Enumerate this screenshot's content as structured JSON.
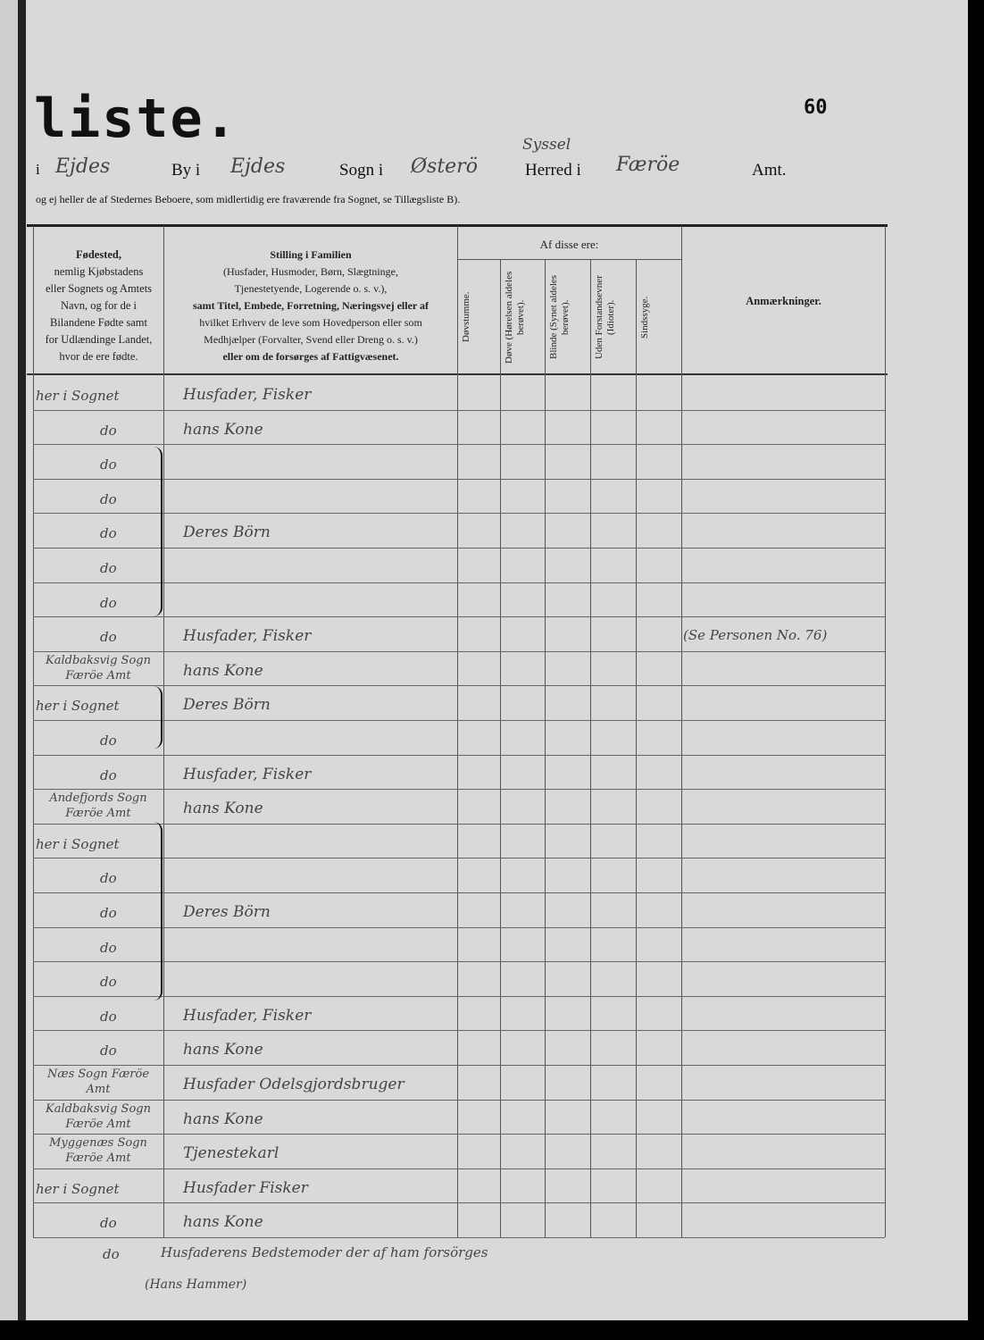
{
  "header": {
    "title": "liste.",
    "page_number": "60",
    "location_line": {
      "prefix_i": "i",
      "town_hand": "Ejdes",
      "by_label": "By i",
      "by_hand": "Ejdes",
      "sogn_label": "Sogn i",
      "sogn_hand": "Østerö",
      "herred_label": "Herred i",
      "herred_correction_hand": "Syssel",
      "amt_hand": "Færöe",
      "amt_label": "Amt."
    },
    "note": "og ej heller de af Stedernes Beboere, som midlertidig ere fraværende fra Sognet, se Tillægsliste B)."
  },
  "columns": {
    "fodested": [
      "Fødested,",
      "nemlig Kjøbstadens",
      "eller Sognets og Amtets",
      "Navn, og for de i",
      "Bilandene Fødte samt",
      "for Udlændinge Landet,",
      "hvor de ere fødte."
    ],
    "stilling": [
      "Stilling i Familien",
      "(Husfader, Husmoder, Børn, Slægtninge,",
      "Tjenestetyende, Logerende o. s. v.),",
      "samt Titel, Embede, Forretning, Næringsvej eller af",
      "hvilket Erhverv de leve som Hovedperson eller som",
      "Medhjælper (Forvalter, Svend eller Dreng o. s. v.)",
      "eller om de forsørges af Fattigvæsenet."
    ],
    "af_disse": "Af disse ere:",
    "sub": [
      "Døvstumme.",
      "Døve (Hørelsen aldeles berøvet).",
      "Blinde (Synet aldeles berøvet).",
      "Uden Forstandsevner (Idioter).",
      "Sindssyge."
    ],
    "anmaerkninger": "Anmærkninger."
  },
  "rows": [
    {
      "fodested": "her i Sognet",
      "stilling": "Husfader, Fisker"
    },
    {
      "fodested": "do",
      "stilling": "hans Kone"
    },
    {
      "fodested": "do",
      "stilling": ""
    },
    {
      "fodested": "do",
      "stilling": ""
    },
    {
      "fodested": "do",
      "stilling": "Deres Börn"
    },
    {
      "fodested": "do",
      "stilling": ""
    },
    {
      "fodested": "do",
      "stilling": ""
    },
    {
      "fodested": "do",
      "stilling": "Husfader, Fisker",
      "remark": "(Se Personen No. 76)"
    },
    {
      "fodested": "Kaldbaksvig Sogn Færöe Amt",
      "stilling": "hans Kone"
    },
    {
      "fodested": "her i Sognet",
      "stilling": "Deres Börn"
    },
    {
      "fodested": "do",
      "stilling": ""
    },
    {
      "fodested": "do",
      "stilling": "Husfader, Fisker"
    },
    {
      "fodested": "Andefjords Sogn Færöe Amt",
      "stilling": "hans Kone"
    },
    {
      "fodested": "her i Sognet",
      "stilling": ""
    },
    {
      "fodested": "do",
      "stilling": ""
    },
    {
      "fodested": "do",
      "stilling": "Deres Börn"
    },
    {
      "fodested": "do",
      "stilling": ""
    },
    {
      "fodested": "do",
      "stilling": ""
    },
    {
      "fodested": "do",
      "stilling": "Husfader, Fisker"
    },
    {
      "fodested": "do",
      "stilling": "hans Kone"
    },
    {
      "fodested": "Næs Sogn Færöe Amt",
      "stilling": "Husfader Odelsgjordsbruger"
    },
    {
      "fodested": "Kaldbaksvig Sogn Færöe Amt",
      "stilling": "hans Kone"
    },
    {
      "fodested": "Myggenæs Sogn Færöe Amt",
      "stilling": "Tjenestekarl"
    },
    {
      "fodested": "her i Sognet",
      "stilling": "Husfader Fisker"
    },
    {
      "fodested": "do",
      "stilling": "hans Kone"
    }
  ],
  "footer_entry": {
    "fodested": "do",
    "stilling": "Husfaderens Bedstemoder der af ham forsörges",
    "name": "(Hans Hammer)"
  }
}
